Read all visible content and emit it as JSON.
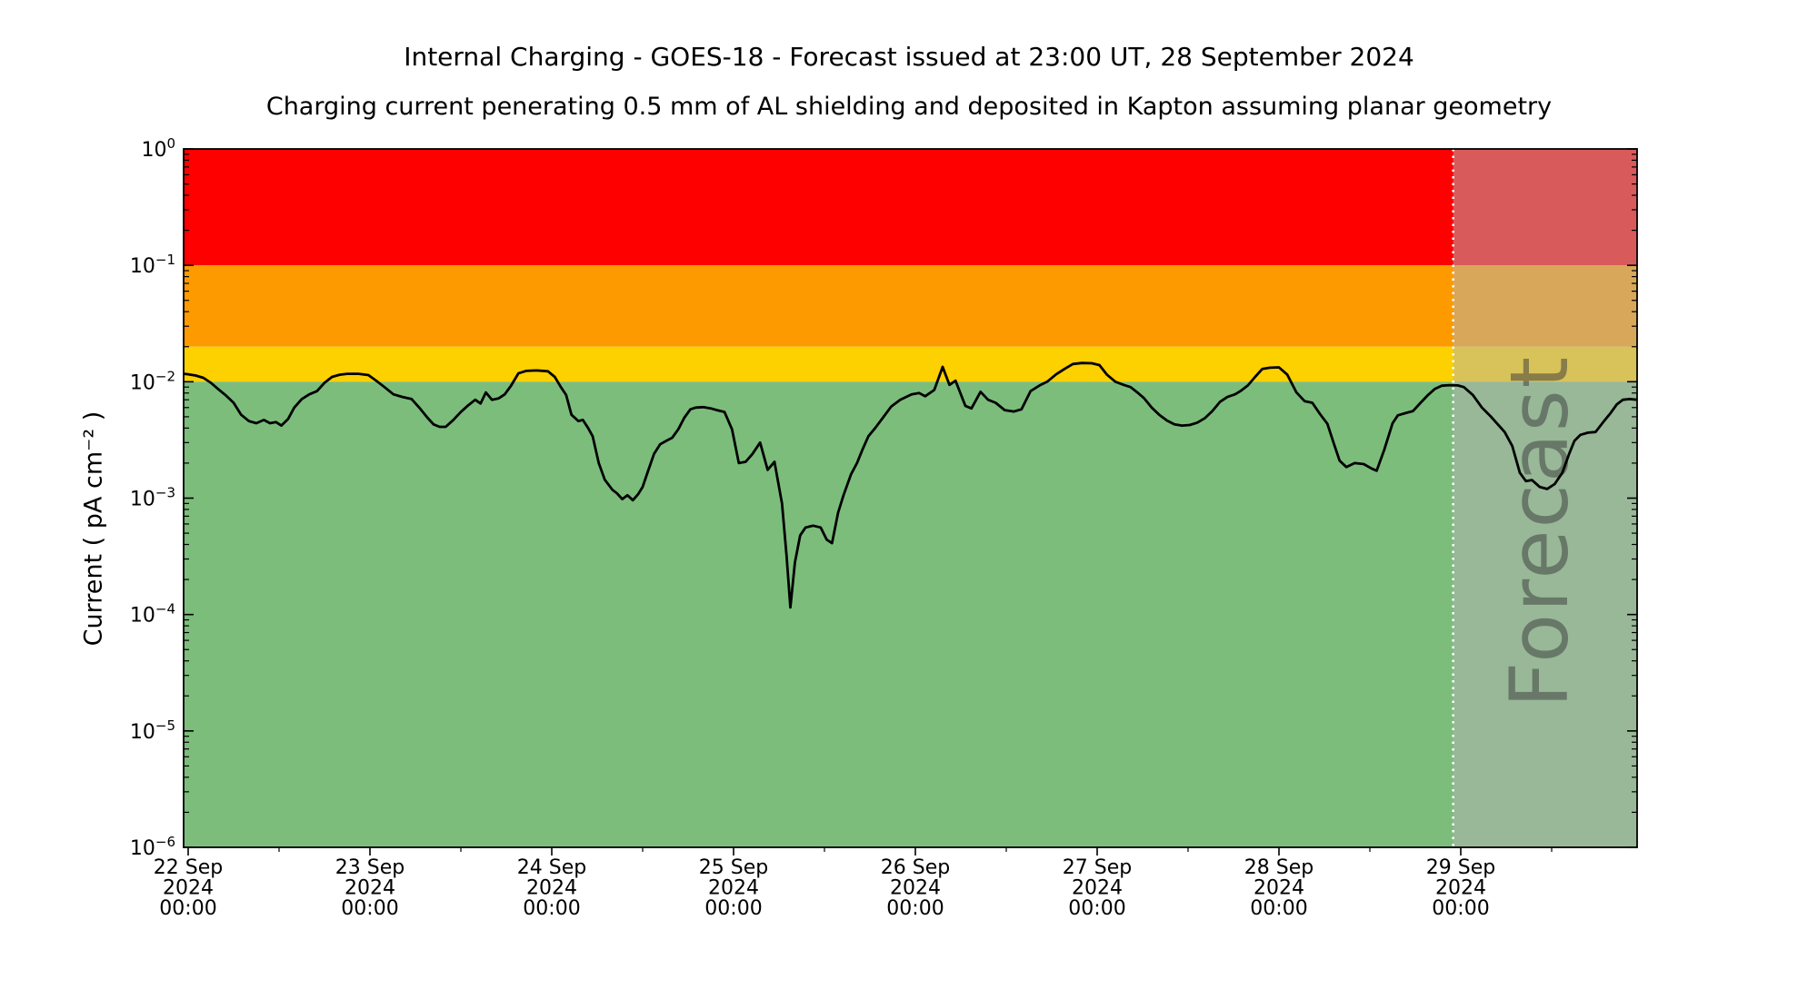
{
  "chart_data": {
    "type": "line",
    "title": "Internal Charging - GOES-18 - Forecast issued at 23:00 UT, 28 September 2024",
    "subtitle": "Charging current penerating 0.5 mm of AL shielding and deposited in Kapton assuming planar geometry",
    "ylabel": "Current ( pA cm⁻² )",
    "ylim": [
      1e-06,
      1.0
    ],
    "y_axis": {
      "scale": "log",
      "tick_exponents": [
        0,
        -1,
        -2,
        -3,
        -4,
        -5,
        -6
      ]
    },
    "x_axis": {
      "range_hours": [
        -0.6,
        191.3
      ],
      "tick_hours": [
        0,
        24,
        48,
        72,
        96,
        120,
        144,
        168
      ],
      "minor_tick_hours": [
        12,
        36,
        60,
        84,
        108,
        132,
        156,
        180
      ],
      "tick_labels": [
        [
          "22 Sep",
          "2024",
          "00:00"
        ],
        [
          "23 Sep",
          "2024",
          "00:00"
        ],
        [
          "24 Sep",
          "2024",
          "00:00"
        ],
        [
          "25 Sep",
          "2024",
          "00:00"
        ],
        [
          "26 Sep",
          "2024",
          "00:00"
        ],
        [
          "27 Sep",
          "2024",
          "00:00"
        ],
        [
          "28 Sep",
          "2024",
          "00:00"
        ],
        [
          "29 Sep",
          "2024",
          "00:00"
        ]
      ]
    },
    "bands": [
      {
        "level": "red",
        "from": 0.1,
        "to": 1.0,
        "color": "#fe0000"
      },
      {
        "level": "orange",
        "from": 0.02,
        "to": 0.1,
        "color": "#fd9a00"
      },
      {
        "level": "yellow",
        "from": 0.01,
        "to": 0.02,
        "color": "#fdd000"
      },
      {
        "level": "green",
        "from": 1e-06,
        "to": 0.01,
        "color": "#7cbd7c"
      }
    ],
    "forecast": {
      "label": "Forecast",
      "start_hours_from_22sep": 167,
      "issued": "23:00 UT, 28 September 2024",
      "overlay_color": "rgba(180,180,180,0.5)",
      "divider_color": "#ffffff",
      "watermark_color": "rgba(55,55,55,0.5)"
    },
    "series": [
      {
        "name": "charging-current",
        "color": "#000000",
        "units": "pA cm-2",
        "points": [
          [
            -0.6,
            0.0117
          ],
          [
            0,
            0.0116
          ],
          [
            1,
            0.0113
          ],
          [
            2,
            0.0108
          ],
          [
            3,
            0.0098
          ],
          [
            4,
            0.0086
          ],
          [
            5,
            0.0076
          ],
          [
            6,
            0.0066
          ],
          [
            7,
            0.0052
          ],
          [
            8,
            0.0046
          ],
          [
            9,
            0.0044
          ],
          [
            10,
            0.0047
          ],
          [
            10.8,
            0.0044
          ],
          [
            11.6,
            0.0045
          ],
          [
            12.3,
            0.0042
          ],
          [
            13.2,
            0.0048
          ],
          [
            14,
            0.006
          ],
          [
            15,
            0.0071
          ],
          [
            16,
            0.0078
          ],
          [
            17,
            0.0083
          ],
          [
            18,
            0.0098
          ],
          [
            19,
            0.011
          ],
          [
            20,
            0.0115
          ],
          [
            21,
            0.0117
          ],
          [
            22.5,
            0.0117
          ],
          [
            23.8,
            0.0114
          ],
          [
            25,
            0.01
          ],
          [
            26,
            0.0089
          ],
          [
            27.1,
            0.0078
          ],
          [
            28.3,
            0.0074
          ],
          [
            29.5,
            0.0071
          ],
          [
            30.5,
            0.006
          ],
          [
            31.6,
            0.0049
          ],
          [
            32.4,
            0.0043
          ],
          [
            33.2,
            0.0041
          ],
          [
            34,
            0.0041
          ],
          [
            35,
            0.0047
          ],
          [
            36,
            0.0055
          ],
          [
            37,
            0.0063
          ],
          [
            37.9,
            0.007
          ],
          [
            38.6,
            0.0065
          ],
          [
            39.3,
            0.0081
          ],
          [
            40.1,
            0.007
          ],
          [
            41,
            0.0072
          ],
          [
            41.8,
            0.0078
          ],
          [
            42.6,
            0.0092
          ],
          [
            43.6,
            0.0118
          ],
          [
            44.6,
            0.0124
          ],
          [
            46,
            0.0125
          ],
          [
            47.5,
            0.0123
          ],
          [
            48.4,
            0.011
          ],
          [
            49.2,
            0.009
          ],
          [
            49.9,
            0.0077
          ],
          [
            50.6,
            0.0052
          ],
          [
            51.5,
            0.0046
          ],
          [
            52.1,
            0.0047
          ],
          [
            52.8,
            0.004
          ],
          [
            53.4,
            0.0034
          ],
          [
            54.2,
            0.002
          ],
          [
            55,
            0.00144
          ],
          [
            56,
            0.00118
          ],
          [
            56.6,
            0.0011
          ],
          [
            57.3,
            0.00098
          ],
          [
            58,
            0.00106
          ],
          [
            58.7,
            0.00096
          ],
          [
            59.4,
            0.00108
          ],
          [
            60,
            0.00125
          ],
          [
            60.7,
            0.0017
          ],
          [
            61.5,
            0.0024
          ],
          [
            62.3,
            0.0029
          ],
          [
            63.1,
            0.0031
          ],
          [
            63.9,
            0.0033
          ],
          [
            64.7,
            0.0039
          ],
          [
            65.5,
            0.0049
          ],
          [
            66.3,
            0.0058
          ],
          [
            67,
            0.006
          ],
          [
            68,
            0.00605
          ],
          [
            69,
            0.0059
          ],
          [
            69.8,
            0.0057
          ],
          [
            70.8,
            0.0055
          ],
          [
            71.8,
            0.0039
          ],
          [
            72.7,
            0.002
          ],
          [
            73.6,
            0.00205
          ],
          [
            74.5,
            0.0024
          ],
          [
            75.5,
            0.003
          ],
          [
            76.5,
            0.00175
          ],
          [
            77.4,
            0.00205
          ],
          [
            78.4,
            0.0009
          ],
          [
            79,
            0.00032
          ],
          [
            79.5,
            0.000115
          ],
          [
            80.1,
            0.00028
          ],
          [
            80.8,
            0.00048
          ],
          [
            81.5,
            0.00056
          ],
          [
            82.5,
            0.00058
          ],
          [
            83.5,
            0.00056
          ],
          [
            84.3,
            0.00044
          ],
          [
            85,
            0.00041
          ],
          [
            85.8,
            0.00075
          ],
          [
            86.5,
            0.00105
          ],
          [
            87.5,
            0.0016
          ],
          [
            88.3,
            0.002
          ],
          [
            89,
            0.0026
          ],
          [
            89.8,
            0.0034
          ],
          [
            90.7,
            0.004
          ],
          [
            91.5,
            0.0047
          ],
          [
            92.8,
            0.0061
          ],
          [
            94,
            0.007
          ],
          [
            95.5,
            0.0078
          ],
          [
            96.5,
            0.008
          ],
          [
            97.3,
            0.0075
          ],
          [
            98.5,
            0.0085
          ],
          [
            99.6,
            0.0134
          ],
          [
            100.5,
            0.0094
          ],
          [
            101.3,
            0.0102
          ],
          [
            102.6,
            0.0062
          ],
          [
            103.4,
            0.0059
          ],
          [
            104.6,
            0.0082
          ],
          [
            105.6,
            0.007
          ],
          [
            106.6,
            0.0066
          ],
          [
            107.8,
            0.0057
          ],
          [
            109,
            0.00555
          ],
          [
            110,
            0.0058
          ],
          [
            111.2,
            0.0083
          ],
          [
            112.4,
            0.0093
          ],
          [
            113.4,
            0.01
          ],
          [
            114.6,
            0.0116
          ],
          [
            115.8,
            0.013
          ],
          [
            116.8,
            0.0142
          ],
          [
            118,
            0.0145
          ],
          [
            119.3,
            0.0144
          ],
          [
            120.3,
            0.0139
          ],
          [
            121.3,
            0.0115
          ],
          [
            122.4,
            0.01
          ],
          [
            123.5,
            0.0094
          ],
          [
            124.4,
            0.009
          ],
          [
            125.3,
            0.0081
          ],
          [
            126.2,
            0.0072
          ],
          [
            127.2,
            0.006
          ],
          [
            128.2,
            0.0052
          ],
          [
            129.2,
            0.00465
          ],
          [
            130.2,
            0.0043
          ],
          [
            131.2,
            0.0042
          ],
          [
            132.2,
            0.00425
          ],
          [
            133.2,
            0.00445
          ],
          [
            134.2,
            0.00485
          ],
          [
            135.2,
            0.0056
          ],
          [
            136.2,
            0.0067
          ],
          [
            137.2,
            0.0074
          ],
          [
            138.2,
            0.0078
          ],
          [
            138.9,
            0.0083
          ],
          [
            139.9,
            0.0093
          ],
          [
            140.9,
            0.0111
          ],
          [
            141.8,
            0.0129
          ],
          [
            142.8,
            0.0132
          ],
          [
            144,
            0.0133
          ],
          [
            145.1,
            0.0115
          ],
          [
            146.3,
            0.0081
          ],
          [
            147.4,
            0.0068
          ],
          [
            148.4,
            0.0066
          ],
          [
            149.4,
            0.0053
          ],
          [
            150.4,
            0.00435
          ],
          [
            151.2,
            0.003
          ],
          [
            152,
            0.0021
          ],
          [
            152.9,
            0.00185
          ],
          [
            154,
            0.002
          ],
          [
            155.2,
            0.00196
          ],
          [
            156.2,
            0.0018
          ],
          [
            156.9,
            0.00172
          ],
          [
            157.9,
            0.0026
          ],
          [
            159,
            0.0044
          ],
          [
            159.7,
            0.00515
          ],
          [
            160.8,
            0.0054
          ],
          [
            161.7,
            0.0056
          ],
          [
            162.7,
            0.0066
          ],
          [
            163.6,
            0.0076
          ],
          [
            164.6,
            0.0087
          ],
          [
            165.5,
            0.00925
          ],
          [
            166.5,
            0.00935
          ],
          [
            167.6,
            0.0093
          ],
          [
            168.4,
            0.009
          ],
          [
            169.6,
            0.0077
          ],
          [
            170.8,
            0.006
          ],
          [
            172,
            0.005
          ],
          [
            172.9,
            0.0043
          ],
          [
            173.8,
            0.0037
          ],
          [
            174.8,
            0.0028
          ],
          [
            175.8,
            0.00165
          ],
          [
            176.6,
            0.0014
          ],
          [
            177.4,
            0.00143
          ],
          [
            178.4,
            0.00125
          ],
          [
            179.4,
            0.0012
          ],
          [
            180.4,
            0.00132
          ],
          [
            181.4,
            0.00165
          ],
          [
            182.3,
            0.0024
          ],
          [
            183,
            0.0031
          ],
          [
            183.8,
            0.0035
          ],
          [
            184.8,
            0.00365
          ],
          [
            185.8,
            0.0037
          ],
          [
            186.8,
            0.0045
          ],
          [
            187.8,
            0.0054
          ],
          [
            188.6,
            0.0064
          ],
          [
            189.4,
            0.007
          ],
          [
            190.3,
            0.0071
          ],
          [
            191.3,
            0.007
          ]
        ]
      }
    ]
  }
}
